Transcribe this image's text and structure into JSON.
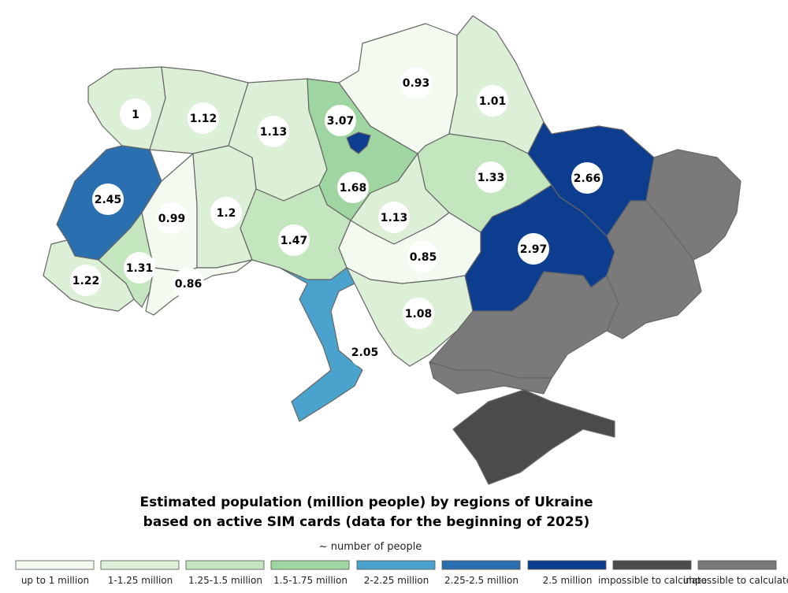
{
  "title": [
    "Estimated population (million people) by regions of Ukraine",
    "based on active SIM cards (data for the beginning of 2025)"
  ],
  "legend": {
    "caption": "~ number of people",
    "items": [
      {
        "label": "up to 1 million",
        "color": "#f3faf0"
      },
      {
        "label": "1-1.25 million",
        "color": "#dcf0d8"
      },
      {
        "label": "1.25-1.5 million",
        "color": "#c4e6bf"
      },
      {
        "label": "1.5-1.75 million",
        "color": "#9fd5a0"
      },
      {
        "label": "2-2.25 million",
        "color": "#4aa3cc"
      },
      {
        "label": "2.25-2.5 million",
        "color": "#2a70b0"
      },
      {
        "label": "2.5 million",
        "color": "#0c3d8e"
      },
      {
        "label": "impossible to calculate",
        "color": "#4b4b4b"
      },
      {
        "label": "impossible to calculate",
        "color": "#7a7a7a"
      }
    ]
  },
  "regions": [
    {
      "value": 1,
      "color": "#dcf0d8"
    },
    {
      "value": 1.12,
      "color": "#dcf0d8"
    },
    {
      "value": 1.13,
      "color": "#dcf0d8"
    },
    {
      "value": 1.68,
      "color": "#9fd5a0"
    },
    {
      "value": 0.93,
      "color": "#f3faf0"
    },
    {
      "value": 1.01,
      "color": "#dcf0d8"
    },
    {
      "value": 1.33,
      "color": "#c4e6bf"
    },
    {
      "value": 2.66,
      "color": "#0c3d8e"
    },
    {
      "value": 1.13,
      "color": "#dcf0d8"
    },
    {
      "value": 0.85,
      "color": "#f3faf0"
    },
    {
      "value": 2.97,
      "color": "#0c3d8e"
    },
    {
      "value": 2.45,
      "color": "#2a70b0"
    },
    {
      "value": 0.99,
      "color": "#f3faf0"
    },
    {
      "value": 1.2,
      "color": "#dcf0d8"
    },
    {
      "value": 1.47,
      "color": "#c4e6bf"
    },
    {
      "value": 1.22,
      "color": "#dcf0d8"
    },
    {
      "value": 1.31,
      "color": "#c4e6bf"
    },
    {
      "value": 0.86,
      "color": "#f3faf0"
    },
    {
      "value": 2.05,
      "color": "#4aa3cc"
    },
    {
      "value": 1.08,
      "color": "#dcf0d8"
    },
    {
      "value": 3.07,
      "color": "#0c3d8e"
    }
  ]
}
